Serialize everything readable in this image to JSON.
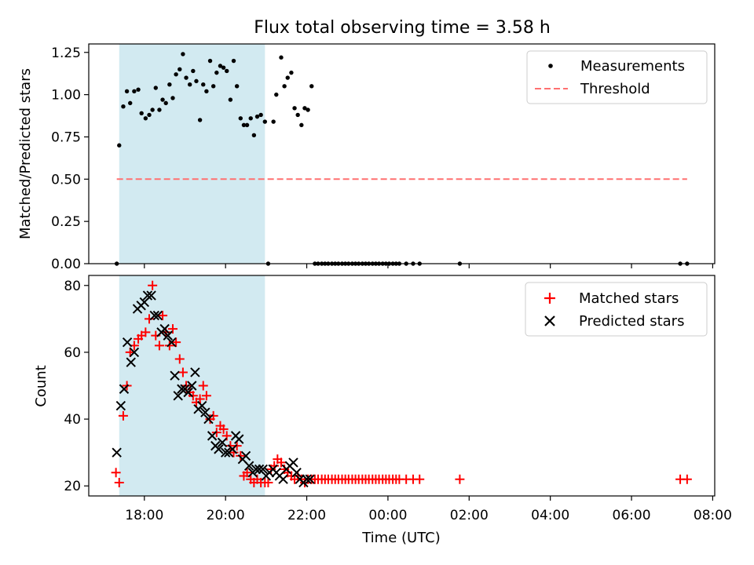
{
  "title": "Flux total observing time = 3.58 h",
  "chart_data": [
    {
      "panel": "top",
      "type": "scatter",
      "ylabel": "Matched/Predicted stars",
      "xlabel": "",
      "x_unit": "hours (UTC, continuing past midnight)",
      "xlim": [
        16.63,
        32.05
      ],
      "ylim": [
        0,
        1.3
      ],
      "yticks": [
        0,
        0.25,
        0.5,
        0.75,
        1.0,
        1.25
      ],
      "ytick_labels": [
        "0.00",
        "0.25",
        "0.50",
        "0.75",
        "1.00",
        "1.25"
      ],
      "grid": false,
      "legend_position": "top-right",
      "shaded_band": {
        "x": [
          17.38,
          20.97
        ],
        "color": "#add8e6"
      },
      "series": [
        {
          "name": "Measurements",
          "color": "#000000",
          "marker": "dot",
          "x": [
            17.32,
            17.38,
            17.48,
            17.57,
            17.65,
            17.75,
            17.85,
            17.93,
            18.03,
            18.12,
            18.2,
            18.28,
            18.37,
            18.45,
            18.53,
            18.62,
            18.7,
            18.78,
            18.87,
            18.95,
            19.03,
            19.12,
            19.2,
            19.28,
            19.37,
            19.45,
            19.53,
            19.62,
            19.7,
            19.78,
            19.87,
            19.95,
            20.03,
            20.12,
            20.2,
            20.28,
            20.37,
            20.45,
            20.53,
            20.62,
            20.7,
            20.78,
            20.87,
            20.97,
            21.05,
            21.18,
            21.25,
            21.37,
            21.45,
            21.53,
            21.62,
            21.7,
            21.78,
            21.87,
            21.95,
            22.03,
            22.12,
            22.2,
            22.28,
            22.37,
            22.45,
            22.53,
            22.62,
            22.7,
            22.78,
            22.87,
            22.95,
            23.03,
            23.12,
            23.2,
            23.28,
            23.37,
            23.45,
            23.53,
            23.62,
            23.7,
            23.78,
            23.87,
            23.95,
            24.03,
            24.12,
            24.2,
            24.28,
            24.45,
            24.62,
            24.78,
            25.77,
            31.2,
            31.37
          ],
          "y": [
            0.0,
            0.7,
            0.93,
            1.02,
            0.95,
            1.02,
            1.03,
            0.89,
            0.86,
            0.88,
            0.91,
            1.04,
            0.91,
            0.97,
            0.95,
            1.06,
            0.98,
            1.12,
            1.15,
            1.24,
            1.1,
            1.06,
            1.14,
            1.08,
            0.85,
            1.06,
            1.02,
            1.2,
            1.05,
            1.13,
            1.17,
            1.16,
            1.14,
            0.97,
            1.2,
            1.05,
            0.86,
            0.82,
            0.82,
            0.86,
            0.76,
            0.87,
            0.88,
            0.84,
            0.0,
            0.84,
            1.0,
            1.22,
            1.05,
            1.1,
            1.13,
            0.92,
            0.88,
            0.82,
            0.92,
            0.91,
            1.05,
            0.0,
            0.0,
            0.0,
            0.0,
            0.0,
            0.0,
            0.0,
            0.0,
            0.0,
            0.0,
            0.0,
            0.0,
            0.0,
            0.0,
            0.0,
            0.0,
            0.0,
            0.0,
            0.0,
            0.0,
            0.0,
            0.0,
            0.0,
            0.0,
            0.0,
            0.0,
            0.0,
            0.0,
            0.0,
            0.0,
            0.0,
            0.0
          ]
        },
        {
          "name": "Threshold",
          "color": "#ff7070",
          "linestyle": "dashed",
          "x": [
            17.32,
            31.37
          ],
          "y": [
            0.5,
            0.5
          ]
        }
      ]
    },
    {
      "panel": "bottom",
      "type": "scatter",
      "xlabel": "Time (UTC)",
      "ylabel": "Count",
      "x_unit": "hours (UTC, continuing past midnight)",
      "xlim": [
        16.63,
        32.05
      ],
      "ylim": [
        17,
        83
      ],
      "xticks": [
        18,
        20,
        22,
        24,
        26,
        28,
        30,
        32
      ],
      "xtick_labels": [
        "18:00",
        "20:00",
        "22:00",
        "00:00",
        "02:00",
        "04:00",
        "06:00",
        "08:00"
      ],
      "yticks": [
        20,
        40,
        60,
        80
      ],
      "ytick_labels": [
        "20",
        "40",
        "60",
        "80"
      ],
      "grid": false,
      "legend_position": "top-right",
      "shaded_band": {
        "x": [
          17.38,
          20.97
        ],
        "color": "#add8e6"
      },
      "series": [
        {
          "name": "Matched stars",
          "color": "#ff0000",
          "marker": "plus",
          "x": [
            17.3,
            17.38,
            17.48,
            17.57,
            17.65,
            17.75,
            17.85,
            17.93,
            18.03,
            18.12,
            18.2,
            18.28,
            18.37,
            18.45,
            18.53,
            18.62,
            18.7,
            18.78,
            18.87,
            18.95,
            19.03,
            19.12,
            19.2,
            19.28,
            19.37,
            19.45,
            19.53,
            19.62,
            19.7,
            19.78,
            19.87,
            19.95,
            20.03,
            20.12,
            20.2,
            20.28,
            20.37,
            20.45,
            20.53,
            20.62,
            20.7,
            20.78,
            20.87,
            20.97,
            21.05,
            21.12,
            21.2,
            21.28,
            21.37,
            21.45,
            21.53,
            21.62,
            21.7,
            21.78,
            21.87,
            21.95,
            22.03,
            22.12,
            22.2,
            22.28,
            22.37,
            22.45,
            22.53,
            22.62,
            22.7,
            22.78,
            22.87,
            22.95,
            23.03,
            23.12,
            23.2,
            23.28,
            23.37,
            23.45,
            23.53,
            23.62,
            23.7,
            23.78,
            23.87,
            23.95,
            24.03,
            24.12,
            24.2,
            24.28,
            24.45,
            24.62,
            24.78,
            25.77,
            31.2,
            31.37
          ],
          "y": [
            24,
            21,
            41,
            50,
            60,
            62,
            64,
            65,
            66,
            70,
            80,
            65,
            62,
            71,
            66,
            62,
            67,
            63,
            58,
            54,
            50,
            48,
            47,
            45,
            46,
            50,
            47,
            40,
            41,
            36,
            38,
            37,
            35,
            32,
            30,
            32,
            29,
            23,
            24,
            22,
            21,
            22,
            21,
            21,
            21,
            25,
            26,
            28,
            27,
            25,
            24,
            23,
            22,
            23,
            22,
            21,
            22,
            22,
            22,
            22,
            22,
            22,
            22,
            22,
            22,
            22,
            22,
            22,
            22,
            22,
            22,
            22,
            22,
            22,
            22,
            22,
            22,
            22,
            22,
            22,
            22,
            22,
            22,
            22,
            22,
            22,
            22,
            22,
            22,
            22
          ]
        },
        {
          "name": "Predicted stars",
          "color": "#000000",
          "marker": "x",
          "x": [
            17.32,
            17.42,
            17.5,
            17.58,
            17.67,
            17.75,
            17.83,
            17.92,
            18.0,
            18.08,
            18.17,
            18.25,
            18.33,
            18.42,
            18.5,
            18.58,
            18.67,
            18.75,
            18.83,
            18.92,
            19.0,
            19.08,
            19.17,
            19.25,
            19.33,
            19.42,
            19.5,
            19.58,
            19.67,
            19.75,
            19.83,
            19.92,
            20.0,
            20.08,
            20.17,
            20.25,
            20.33,
            20.42,
            20.5,
            20.58,
            20.67,
            20.75,
            20.83,
            20.92,
            21.0,
            21.08,
            21.17,
            21.25,
            21.33,
            21.42,
            21.5,
            21.58,
            21.67,
            21.75,
            21.83,
            21.92,
            22.0,
            22.08
          ],
          "y": [
            30,
            44,
            49,
            63,
            57,
            60,
            73,
            74,
            75,
            77,
            77,
            71,
            71,
            66,
            67,
            65,
            63,
            53,
            47,
            49,
            49,
            48,
            50,
            54,
            43,
            44,
            42,
            40,
            35,
            32,
            31,
            33,
            30,
            30,
            31,
            35,
            34,
            28,
            29,
            26,
            24,
            25,
            25,
            25,
            23,
            24,
            25,
            24,
            23,
            22,
            25,
            26,
            27,
            24,
            22,
            21,
            22,
            22
          ]
        }
      ]
    }
  ]
}
